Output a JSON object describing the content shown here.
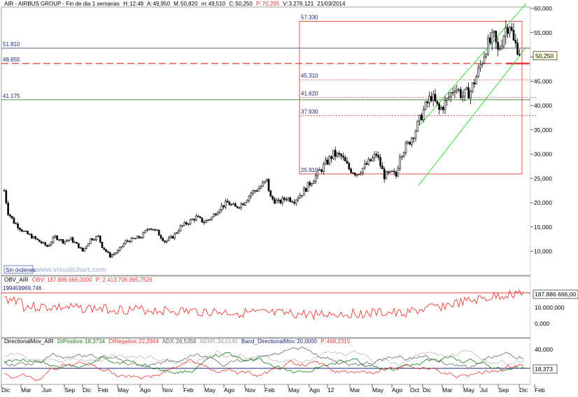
{
  "header": {
    "main": {
      "symbol": "AIR - AIRBUS GROUP",
      "mode": "Fin de dia",
      "period": "1 semanas",
      "fields": [
        {
          "k": "H:",
          "v": "12:48"
        },
        {
          "k": "A:",
          "v": "49,950"
        },
        {
          "k": "M:",
          "v": "50,820"
        },
        {
          "k": "m:",
          "v": "49,510"
        },
        {
          "k": "C:",
          "v": "50,250"
        },
        {
          "k": "P:",
          "v": "70,295",
          "color": "#e53935"
        },
        {
          "k": "V:",
          "v": "3.276.121"
        },
        {
          "k": "",
          "v": "21/03/2014"
        }
      ]
    },
    "obv": {
      "name": "OBV_AIR",
      "field": "OBV: 187.886.666,0000",
      "p": "P: 2.413.706.995,7526",
      "level_label": "199459969,746"
    },
    "dmi": {
      "name": "DirectionalMov_AIR",
      "fields": [
        {
          "k": "DIPositive:",
          "v": "18,3734",
          "color": "#1a7a1a"
        },
        {
          "k": "DINegative:",
          "v": "22,2844",
          "color": "#e53935"
        },
        {
          "k": "ADX:",
          "v": "26,5358",
          "color": "#555555"
        },
        {
          "k": "ADXR:",
          "v": "34,6140",
          "color": "#999999"
        },
        {
          "k": "Band_DirectionalMov:",
          "v": "20,0000",
          "color": "#1a237e"
        },
        {
          "k": "P:",
          "v": "468,2315",
          "color": "#e53935"
        }
      ]
    }
  },
  "main_panel": {
    "price_axis": [
      "60,000",
      "55,000",
      "50,000",
      "45,000",
      "40,000",
      "35,000",
      "30,000",
      "25,000",
      "20,000",
      "15,000",
      "10,000"
    ],
    "current_price": "50,250",
    "levels": [
      {
        "label": "51.810",
        "value": 51.81,
        "color": "#3a4a8a",
        "style": "solid"
      },
      {
        "label": "48.655",
        "value": 48.655,
        "color": "#e53935",
        "style": "dashed"
      },
      {
        "label": "41.175",
        "value": 41.175,
        "color": "#2e7d32",
        "style": "solid"
      }
    ],
    "fib_box": {
      "high_label": "57.330",
      "low_label": "25.910",
      "high": 57.33,
      "low": 25.91
    },
    "fib_levels": [
      {
        "label": "45.310",
        "value": 45.31
      },
      {
        "label": "41.620",
        "value": 41.62
      },
      {
        "label": "37.930",
        "value": 37.93
      }
    ],
    "sin_ordenes": "Sin órdenes",
    "watermark": "www.visualchart.com"
  },
  "obv_panel": {
    "axis": [
      "187.886.666,00",
      "10.000.000",
      "0,000"
    ]
  },
  "dmi_panel": {
    "axis": [
      "40,000",
      "18,373"
    ]
  },
  "time_axis": [
    "Dic",
    "Mar",
    "Jun",
    "Sep",
    "Dic",
    "Feb",
    "May",
    "Ago",
    "Nov",
    "Feb",
    "May",
    "Ago",
    "Nov",
    "Feb",
    "May",
    "Ago",
    "12",
    "Mar",
    "May",
    "Ago",
    "Oct",
    "Dic",
    "Mar",
    "May",
    "Jul",
    "Sep",
    "Dic",
    "Feb"
  ],
  "chart_data": [
    {
      "type": "candlestick",
      "title": "AIR - AIRBUS GROUP",
      "ylim": [
        6,
        61
      ],
      "x_range": [
        "2009-12",
        "2014-03"
      ],
      "close_path": [
        [
          0,
          22.5
        ],
        [
          2,
          18
        ],
        [
          5,
          16
        ],
        [
          10,
          14
        ],
        [
          16,
          12.5
        ],
        [
          22,
          11
        ],
        [
          26,
          13
        ],
        [
          30,
          12
        ],
        [
          34,
          12.5
        ],
        [
          38,
          11
        ],
        [
          40,
          10
        ],
        [
          44,
          12.5
        ],
        [
          48,
          13
        ],
        [
          50,
          11
        ],
        [
          54,
          9
        ],
        [
          58,
          10
        ],
        [
          62,
          12
        ],
        [
          66,
          12.5
        ],
        [
          70,
          13
        ],
        [
          74,
          15
        ],
        [
          78,
          14
        ],
        [
          82,
          12
        ],
        [
          86,
          13
        ],
        [
          90,
          15
        ],
        [
          94,
          16
        ],
        [
          98,
          17
        ],
        [
          102,
          16
        ],
        [
          106,
          17
        ],
        [
          110,
          19
        ],
        [
          114,
          20
        ],
        [
          118,
          19
        ],
        [
          122,
          20
        ],
        [
          126,
          22
        ],
        [
          130,
          23
        ],
        [
          134,
          24.5
        ],
        [
          136,
          21
        ],
        [
          140,
          20
        ],
        [
          144,
          21
        ],
        [
          148,
          20.5
        ],
        [
          152,
          22
        ],
        [
          156,
          24
        ],
        [
          160,
          26
        ],
        [
          164,
          28
        ],
        [
          168,
          30
        ],
        [
          172,
          29.5
        ],
        [
          176,
          27
        ],
        [
          180,
          26
        ],
        [
          184,
          27.5
        ],
        [
          188,
          29
        ],
        [
          190,
          30
        ],
        [
          194,
          25.5
        ],
        [
          198,
          26
        ],
        [
          200,
          25.5
        ],
        [
          202,
          30
        ],
        [
          206,
          32
        ],
        [
          210,
          35
        ],
        [
          214,
          39
        ],
        [
          218,
          42
        ],
        [
          222,
          39
        ],
        [
          226,
          41
        ],
        [
          230,
          44
        ],
        [
          234,
          42
        ],
        [
          238,
          43
        ],
        [
          242,
          47
        ],
        [
          246,
          52
        ],
        [
          250,
          54
        ],
        [
          252,
          51
        ],
        [
          256,
          56
        ],
        [
          258,
          57
        ],
        [
          260,
          53
        ],
        [
          262,
          52
        ],
        [
          264,
          50.2
        ]
      ],
      "trend_channel": "rising green channel from ~25 (Oct 2012) to ~60 (Jan 2014)"
    },
    {
      "type": "line",
      "title": "OBV_AIR",
      "series": [
        {
          "name": "OBV",
          "color": "#e53935"
        }
      ],
      "last_value": 187886666
    },
    {
      "type": "line",
      "title": "DirectionalMov_AIR",
      "series": [
        {
          "name": "DIPositive",
          "last": 18.3734,
          "color": "#1a7a1a"
        },
        {
          "name": "DINegative",
          "last": 22.2844,
          "color": "#e53935"
        },
        {
          "name": "ADX",
          "last": 26.5358,
          "color": "#555555"
        },
        {
          "name": "ADXR",
          "last": 34.614,
          "color": "#999999"
        },
        {
          "name": "Band_DirectionalMov",
          "last": 20.0,
          "color": "#1a237e"
        }
      ]
    }
  ]
}
